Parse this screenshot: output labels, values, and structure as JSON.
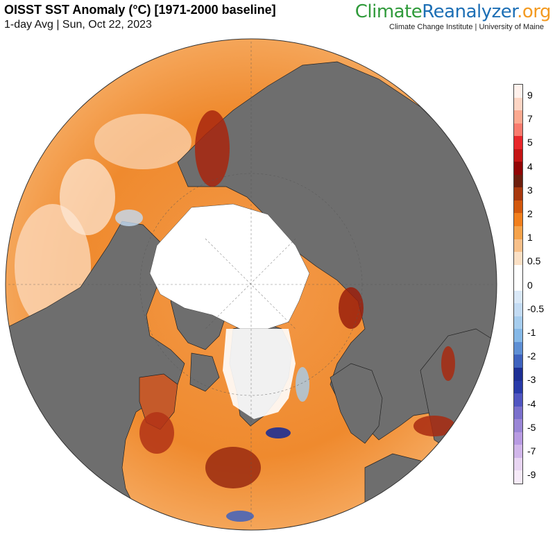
{
  "header": {
    "title": "OISST SST Anomaly (°C) [1971-2000 baseline]",
    "subtitle": "1-day Avg | Sun, Oct 22, 2023"
  },
  "branding": {
    "part1": "Climate",
    "part2": "Reanalyzer",
    "part3": ".org",
    "tagline": "Climate Change Institute | University of Maine"
  },
  "colorbar": {
    "labels": [
      "9",
      "7",
      "5",
      "4",
      "3",
      "2",
      "1",
      "0.5",
      "0",
      "-0.5",
      "-1",
      "-2",
      "-3",
      "-4",
      "-5",
      "-7",
      "-9"
    ],
    "colors": [
      "#fff1ec",
      "#fdd5c4",
      "#fca990",
      "#f97b6e",
      "#e8262a",
      "#c41414",
      "#920505",
      "#6d1e0e",
      "#a8380e",
      "#d2580d",
      "#f17f1d",
      "#f5a24a",
      "#f7c08a",
      "#fbe0c5",
      "#ffffff",
      "#ffffff",
      "#d9e8f7",
      "#c3dbf3",
      "#a6cdee",
      "#85b8e7",
      "#5e8fd4",
      "#3e62be",
      "#1d2f94",
      "#283aa8",
      "#5055c1",
      "#7a70cc",
      "#9a86d6",
      "#b89be2",
      "#d1b6ea",
      "#e8d5f2",
      "#f6eaf8"
    ]
  }
}
